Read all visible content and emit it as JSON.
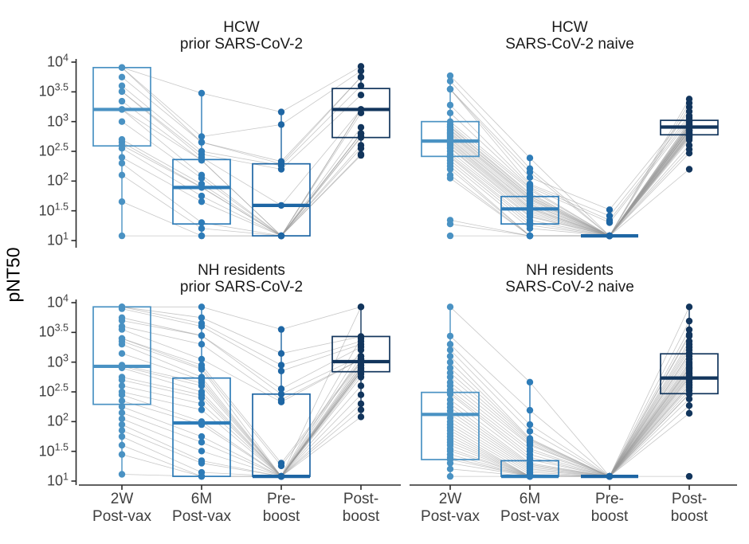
{
  "chart_data": {
    "type": "boxplot",
    "subtype": "longitudinal boxplots with individual subject points and connecting trajectories",
    "ylabel": "pNT50",
    "y_scale": "log10",
    "ylim": [
      10,
      10000
    ],
    "y_tick_exponents": [
      4,
      3.5,
      3,
      2.5,
      2,
      1.5,
      1
    ],
    "x_categories": [
      [
        "2W",
        "Post-vax"
      ],
      [
        "6M",
        "Post-vax"
      ],
      [
        "Pre-",
        "boost"
      ],
      [
        "Post-",
        "boost"
      ]
    ],
    "grid": false,
    "legend": false,
    "timepoint_colors": [
      "#4A92C3",
      "#2E7CB8",
      "#1E66A4",
      "#12355C"
    ],
    "trajectory_line_color": "#999999",
    "axis_color": "#2b2b2b",
    "title_color": "#1a1a1a",
    "tick_text_color": "#404040",
    "panels": [
      {
        "title": [
          "HCW",
          "prior SARS-CoV-2"
        ],
        "row": 0,
        "col": 0,
        "boxes": [
          {
            "lo": 12,
            "q1": 390,
            "med": 1600,
            "q3": 8100,
            "hi": 8100
          },
          {
            "lo": 12,
            "q1": 19,
            "med": 78,
            "q3": 230,
            "hi": 3000
          },
          {
            "lo": 12,
            "q1": 12,
            "med": 39,
            "q3": 195,
            "hi": 1450
          },
          {
            "lo": 270,
            "q1": 540,
            "med": 1600,
            "q3": 3600,
            "hi": 8500
          }
        ],
        "subjects": [
          [
            8100,
            3000,
            1450,
            8500
          ],
          [
            8100,
            560,
            890,
            7100
          ],
          [
            8100,
            450,
            214,
            5600
          ],
          [
            5600,
            450,
            195,
            5600
          ],
          [
            4000,
            316,
            182,
            4000
          ],
          [
            3200,
            282,
            158,
            2800
          ],
          [
            3200,
            250,
            39,
            1600
          ],
          [
            2200,
            224,
            12,
            1600
          ],
          [
            1600,
            224,
            12,
            1400
          ],
          [
            1600,
            126,
            12,
            800
          ],
          [
            1000,
            112,
            12,
            630
          ],
          [
            500,
            89,
            12,
            630
          ],
          [
            450,
            79,
            12,
            630
          ],
          [
            400,
            78,
            12,
            560
          ],
          [
            355,
            56,
            12,
            540
          ],
          [
            250,
            45,
            12,
            400
          ],
          [
            200,
            20,
            12,
            355
          ],
          [
            126,
            16,
            12,
            282
          ],
          [
            45,
            12,
            12,
            270
          ],
          [
            12,
            12,
            12,
            1600
          ]
        ]
      },
      {
        "title": [
          "HCW",
          "SARS-CoV-2 naive"
        ],
        "row": 0,
        "col": 1,
        "boxes": [
          {
            "lo": 112,
            "q1": 260,
            "med": 470,
            "q3": 1000,
            "hi": 4800
          },
          {
            "lo": 12,
            "q1": 19,
            "med": 34,
            "q3": 55,
            "hi": 245
          },
          {
            "lo": 12,
            "q1": 12,
            "med": 12,
            "q3": 12,
            "hi": 12
          },
          {
            "lo": 295,
            "q1": 600,
            "med": 810,
            "q3": 1050,
            "hi": 2400
          }
        ],
        "subjects": [
          [
            5900,
            245,
            12,
            2400
          ],
          [
            4800,
            162,
            12,
            2050
          ],
          [
            3500,
            141,
            12,
            1750
          ],
          [
            3500,
            115,
            33,
            1480
          ],
          [
            3500,
            89,
            26,
            1260
          ],
          [
            1900,
            85,
            22,
            1150
          ],
          [
            1400,
            79,
            20,
            1050
          ],
          [
            1000,
            76,
            12,
            1000
          ],
          [
            890,
            71,
            12,
            930
          ],
          [
            830,
            63,
            12,
            890
          ],
          [
            800,
            60,
            12,
            850
          ],
          [
            740,
            56,
            12,
            810
          ],
          [
            710,
            55,
            12,
            810
          ],
          [
            660,
            52,
            12,
            780
          ],
          [
            630,
            50,
            12,
            740
          ],
          [
            600,
            48,
            12,
            720
          ],
          [
            560,
            45,
            12,
            710
          ],
          [
            525,
            42,
            12,
            690
          ],
          [
            500,
            40,
            12,
            660
          ],
          [
            470,
            37,
            12,
            630
          ],
          [
            450,
            35,
            12,
            600
          ],
          [
            420,
            34,
            12,
            600
          ],
          [
            400,
            32,
            12,
            575
          ],
          [
            370,
            30,
            12,
            550
          ],
          [
            355,
            28,
            12,
            525
          ],
          [
            316,
            26,
            12,
            490
          ],
          [
            282,
            25,
            12,
            400
          ],
          [
            263,
            22,
            12,
            340
          ],
          [
            250,
            20,
            12,
            295
          ],
          [
            224,
            18,
            12,
            1000
          ],
          [
            200,
            16,
            12,
            890
          ],
          [
            178,
            12,
            12,
            800
          ],
          [
            158,
            12,
            12,
            710
          ],
          [
            126,
            12,
            12,
            630
          ],
          [
            112,
            12,
            12,
            158
          ],
          [
            22,
            12,
            12,
            800
          ],
          [
            19,
            12,
            12,
            710
          ],
          [
            12,
            12,
            12,
            560
          ]
        ]
      },
      {
        "title": [
          "NH residents",
          "prior SARS-CoV-2"
        ],
        "row": 1,
        "col": 0,
        "boxes": [
          {
            "lo": 12,
            "q1": 195,
            "med": 850,
            "q3": 8500,
            "hi": 8500
          },
          {
            "lo": 12,
            "q1": 12,
            "med": 95,
            "q3": 540,
            "hi": 8500
          },
          {
            "lo": 12,
            "q1": 12,
            "med": 12,
            "q3": 290,
            "hi": 3550
          },
          {
            "lo": 120,
            "q1": 690,
            "med": 1020,
            "q3": 2700,
            "hi": 8500
          }
        ],
        "subjects": [
          [
            8500,
            8500,
            3550,
            8500
          ],
          [
            8500,
            5600,
            1400,
            2700
          ],
          [
            8500,
            4500,
            890,
            2250
          ],
          [
            7900,
            4000,
            710,
            2000
          ],
          [
            5600,
            2800,
            355,
            1800
          ],
          [
            5000,
            2800,
            290,
            1260
          ],
          [
            4000,
            2000,
            234,
            1120
          ],
          [
            3550,
            1120,
            214,
            1120
          ],
          [
            2500,
            890,
            20,
            1070
          ],
          [
            2500,
            800,
            18,
            1020
          ],
          [
            2250,
            760,
            12,
            1000
          ],
          [
            2000,
            560,
            12,
            890
          ],
          [
            1400,
            500,
            12,
            800
          ],
          [
            890,
            450,
            12,
            760
          ],
          [
            850,
            400,
            12,
            710
          ],
          [
            800,
            316,
            12,
            690
          ],
          [
            560,
            282,
            12,
            630
          ],
          [
            500,
            250,
            12,
            560
          ],
          [
            400,
            200,
            12,
            400
          ],
          [
            316,
            158,
            12,
            282
          ],
          [
            282,
            100,
            12,
            200
          ],
          [
            224,
            89,
            12,
            158
          ],
          [
            178,
            56,
            12,
            120
          ],
          [
            141,
            45,
            12,
            8500
          ],
          [
            112,
            32,
            12,
            2500
          ],
          [
            89,
            22,
            12,
            1600
          ],
          [
            71,
            20,
            12,
            1260
          ],
          [
            56,
            14,
            12,
            890
          ],
          [
            40,
            12,
            12,
            800
          ],
          [
            28,
            12,
            12,
            710
          ],
          [
            13,
            12,
            12,
            690
          ]
        ]
      },
      {
        "title": [
          "NH residents",
          "SARS-CoV-2 naive"
        ],
        "row": 1,
        "col": 1,
        "boxes": [
          {
            "lo": 12,
            "q1": 23,
            "med": 132,
            "q3": 310,
            "hi": 8500
          },
          {
            "lo": 12,
            "q1": 12,
            "med": 12,
            "q3": 22,
            "hi": 460
          },
          {
            "lo": 12,
            "q1": 12,
            "med": 12,
            "q3": 12,
            "hi": 12
          },
          {
            "lo": 140,
            "q1": 295,
            "med": 540,
            "q3": 1380,
            "hi": 8500
          }
        ],
        "subjects": [
          [
            8500,
            460,
            12,
            8500
          ],
          [
            2750,
            155,
            12,
            4900
          ],
          [
            2000,
            89,
            12,
            3500
          ],
          [
            1600,
            69,
            12,
            2900
          ],
          [
            1260,
            52,
            12,
            2750
          ],
          [
            1000,
            50,
            12,
            2000
          ],
          [
            800,
            48,
            12,
            1600
          ],
          [
            660,
            45,
            12,
            1380
          ],
          [
            560,
            42,
            12,
            1260
          ],
          [
            457,
            40,
            12,
            1120
          ],
          [
            400,
            35,
            12,
            1000
          ],
          [
            340,
            32,
            12,
            930
          ],
          [
            309,
            28,
            12,
            870
          ],
          [
            288,
            25,
            12,
            810
          ],
          [
            234,
            23,
            12,
            760
          ],
          [
            200,
            20,
            12,
            710
          ],
          [
            174,
            19,
            12,
            660
          ],
          [
            151,
            18,
            12,
            630
          ],
          [
            132,
            17,
            12,
            590
          ],
          [
            115,
            16,
            12,
            537
          ],
          [
            100,
            15,
            12,
            500
          ],
          [
            89,
            14,
            12,
            457
          ],
          [
            79,
            13,
            12,
            417
          ],
          [
            71,
            12,
            12,
            372
          ],
          [
            63,
            12,
            12,
            331
          ],
          [
            56,
            12,
            12,
            295
          ],
          [
            50,
            12,
            12,
            288
          ],
          [
            45,
            12,
            12,
            240
          ],
          [
            40,
            12,
            12,
            186
          ],
          [
            35,
            12,
            12,
            138
          ],
          [
            32,
            12,
            12,
            2240
          ],
          [
            28,
            12,
            12,
            1780
          ],
          [
            25,
            12,
            12,
            1410
          ],
          [
            23,
            12,
            12,
            794
          ],
          [
            20,
            12,
            12,
            560
          ],
          [
            16,
            12,
            12,
            400
          ],
          [
            12,
            12,
            12,
            12
          ]
        ]
      }
    ]
  }
}
